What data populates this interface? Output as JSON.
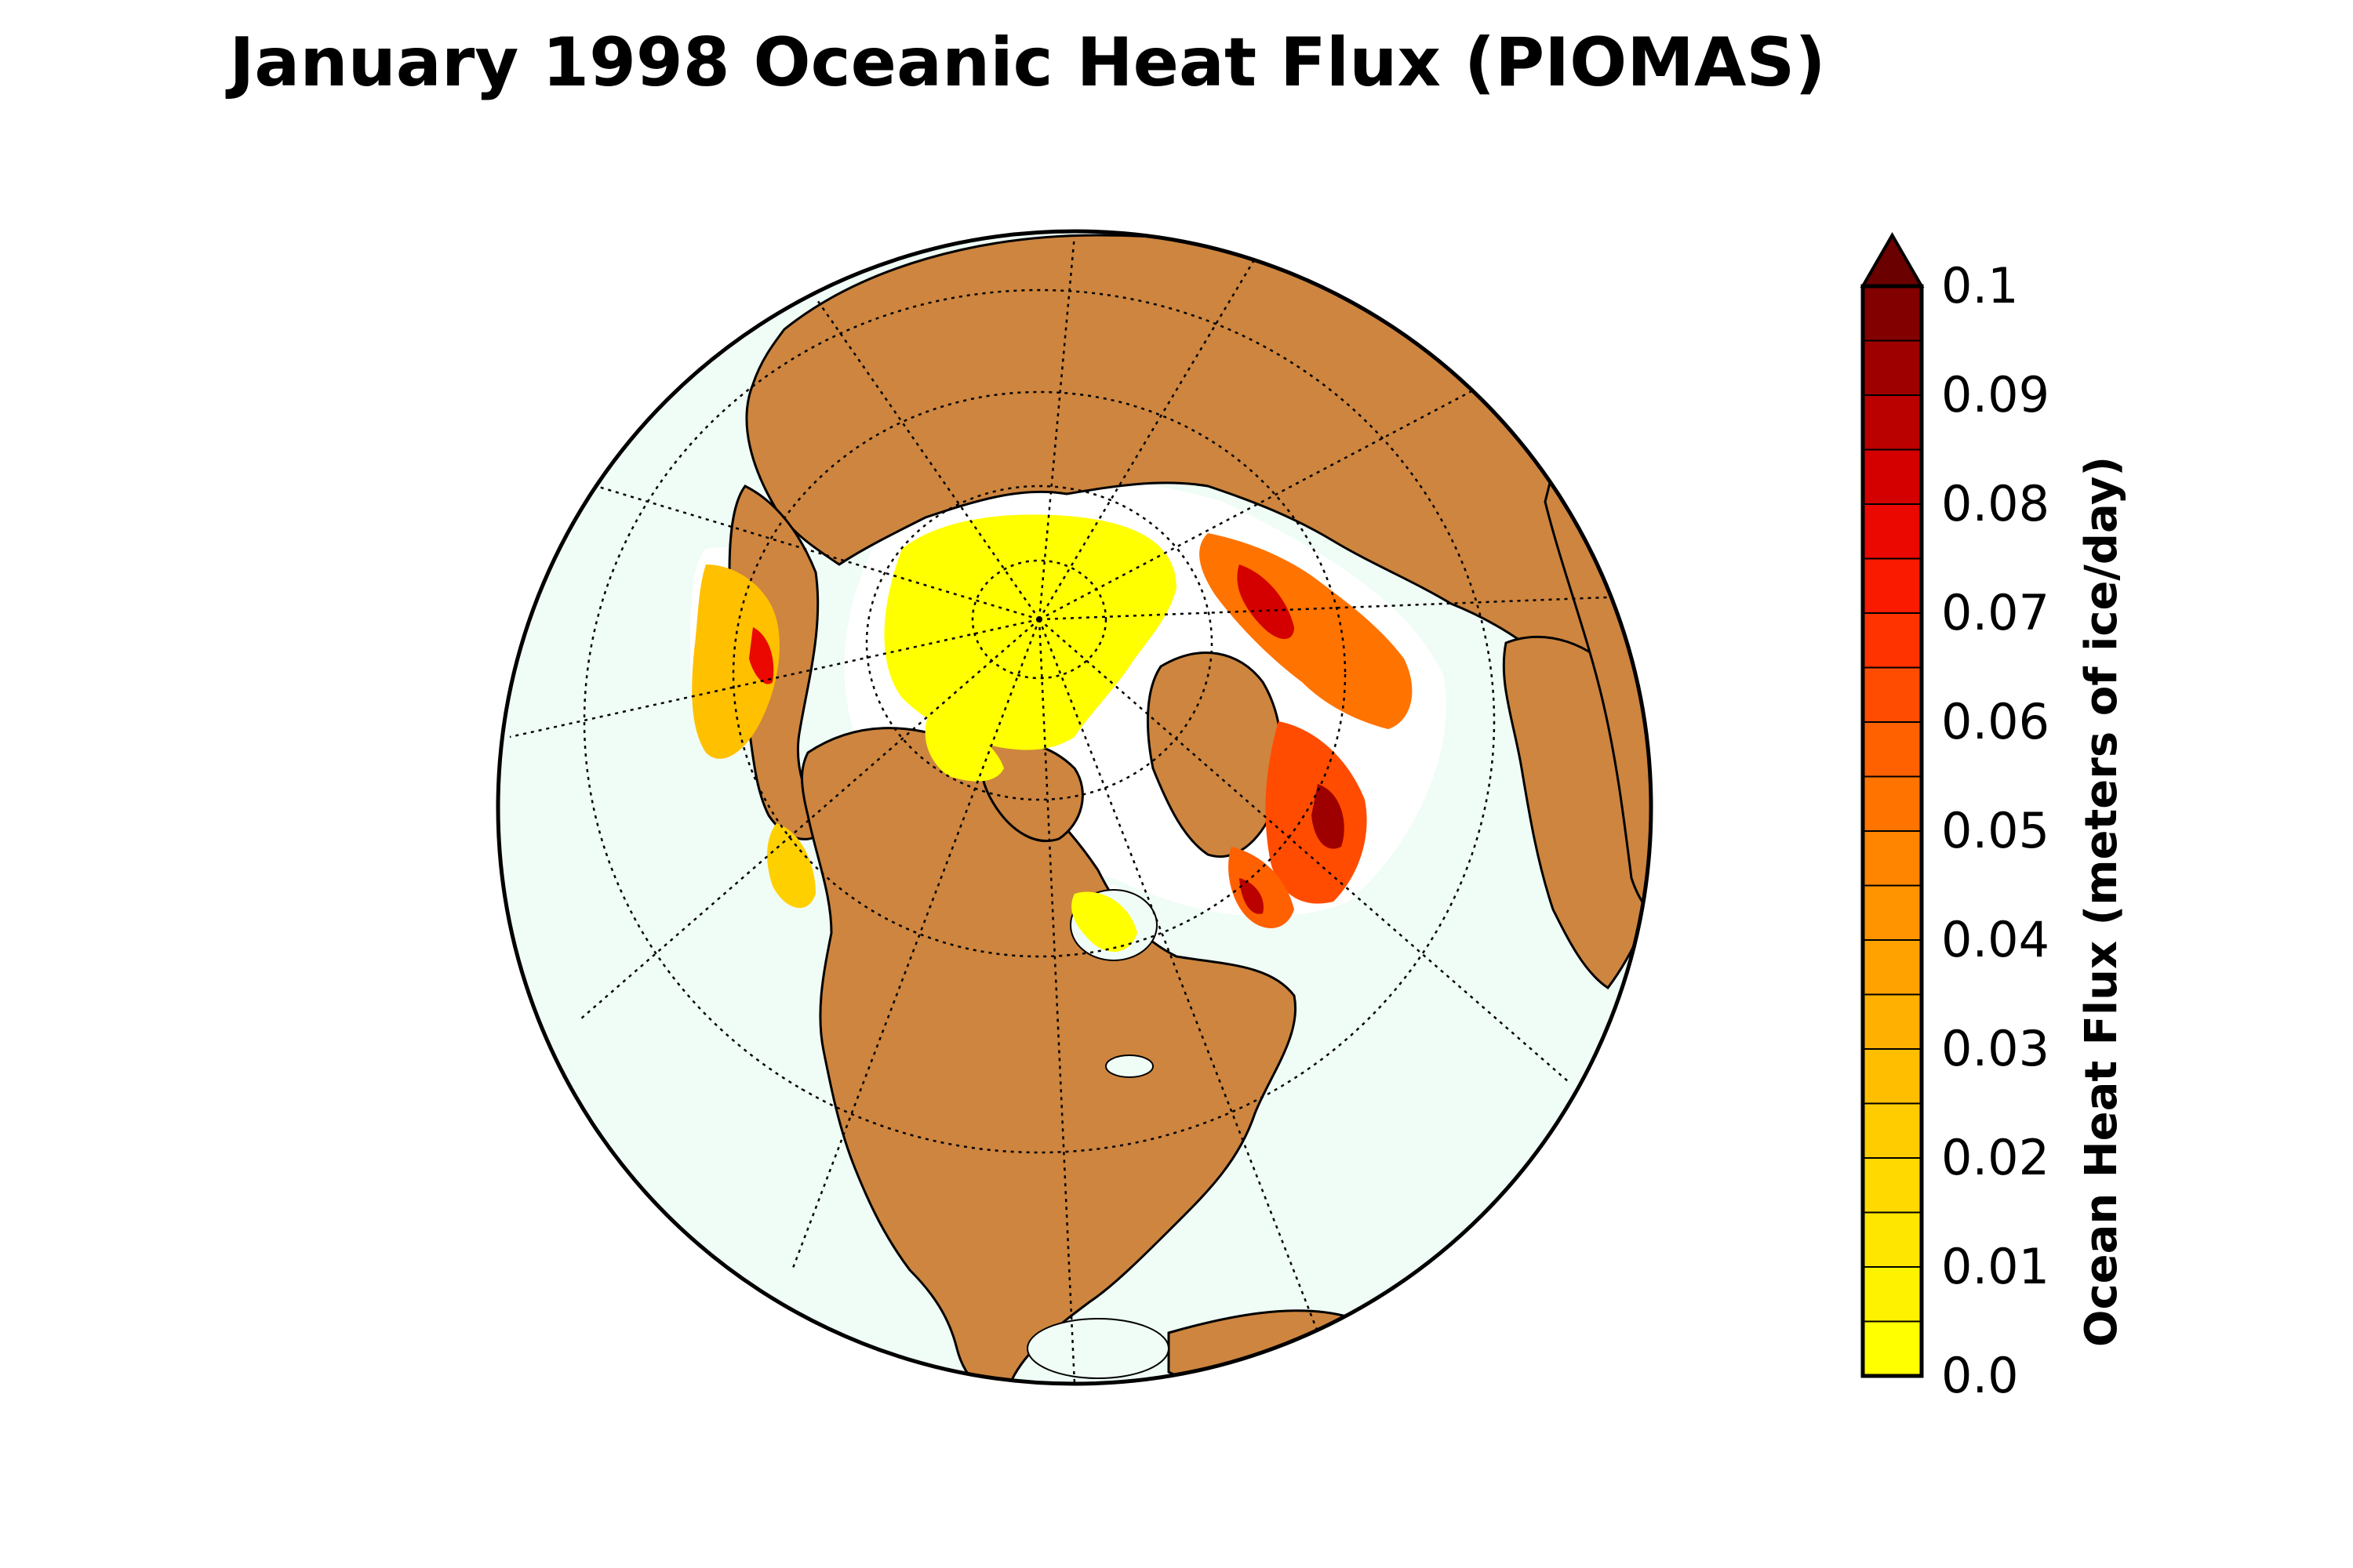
{
  "title": "January 1998 Oceanic Heat Flux (PIOMAS)",
  "colorbar": {
    "label": "Ocean Heat Flux (meters of ice/day)",
    "ticks": [
      "0.0",
      "0.01",
      "0.02",
      "0.03",
      "0.04",
      "0.05",
      "0.06",
      "0.07",
      "0.08",
      "0.09",
      "0.1"
    ],
    "min": 0.0,
    "max": 0.1,
    "levels": 20,
    "colors": [
      "#ffff00",
      "#fff200",
      "#ffe600",
      "#ffd900",
      "#ffcc00",
      "#ffbf00",
      "#ffb000",
      "#ffa200",
      "#ff9300",
      "#ff8400",
      "#ff7300",
      "#ff6000",
      "#ff4c00",
      "#ff3300",
      "#f91a00",
      "#ea0800",
      "#d40000",
      "#bb0000",
      "#9e0000",
      "#820000"
    ],
    "extend_color": "#6b0000",
    "extend": "max"
  },
  "map": {
    "projection": "orthographic",
    "center": "North Pole / North America",
    "land_color": "#cd853f",
    "ocean_color": "#f0fcf6",
    "no_data_color": "#ffffff"
  }
}
